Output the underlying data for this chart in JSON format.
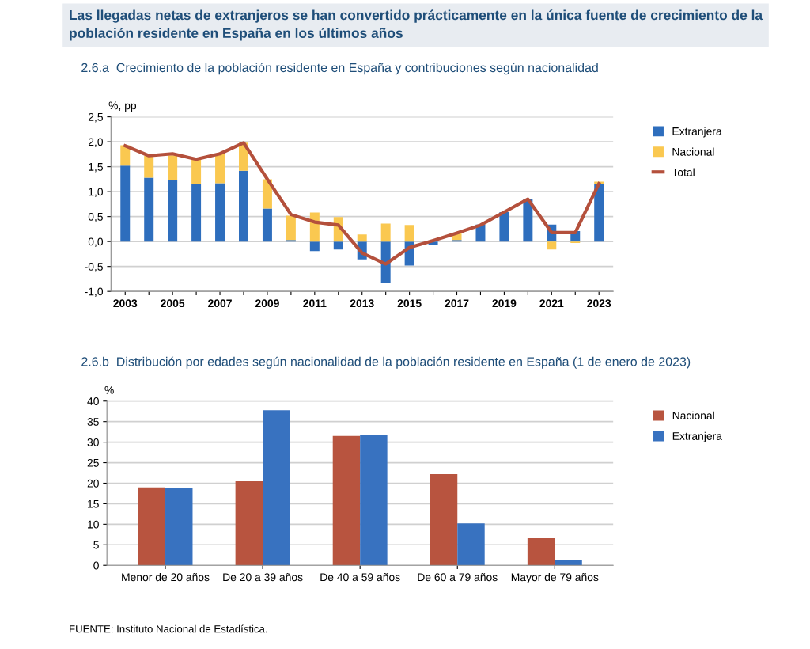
{
  "chart_data": [
    {
      "type": "bar",
      "title": "Las llegadas netas de extranjeros se han convertido prácticamente en la única fuente de crecimiento de la población residente en España en los últimos años",
      "subtitle": "2.6.a  Crecimiento de la población residente en España y contribuciones según nacionalidad",
      "ylabel": "%, pp",
      "categories": [
        "2003",
        null,
        "2005",
        null,
        "2007",
        null,
        "2009",
        null,
        "2011",
        null,
        "2013",
        null,
        "2015",
        null,
        "2017",
        null,
        "2019",
        null,
        "2021",
        null,
        "2023"
      ],
      "stacked": true,
      "series": [
        {
          "name": "Extranjera",
          "color": "#2e6ebd",
          "values": [
            1.52,
            1.28,
            1.24,
            1.15,
            1.17,
            1.42,
            0.66,
            0.03,
            -0.19,
            -0.16,
            -0.36,
            -0.83,
            -0.48,
            -0.07,
            0.03,
            0.34,
            0.59,
            0.85,
            0.34,
            0.21,
            1.16
          ]
        },
        {
          "name": "Nacional",
          "color": "#fac850",
          "values": [
            0.41,
            0.44,
            0.49,
            0.5,
            0.58,
            0.56,
            0.59,
            0.49,
            0.58,
            0.49,
            0.14,
            0.36,
            0.33,
            null,
            0.14,
            0.0,
            0.0,
            0.0,
            -0.16,
            -0.03,
            0.04
          ]
        },
        {
          "name": "Total",
          "type": "line",
          "color": "#b4503c",
          "values": [
            1.92,
            1.72,
            1.76,
            1.65,
            1.76,
            1.98,
            1.25,
            0.54,
            0.39,
            0.33,
            -0.23,
            -0.45,
            -0.12,
            0.02,
            0.17,
            0.33,
            0.59,
            0.85,
            0.18,
            0.18,
            1.16
          ]
        }
      ],
      "ylim": [
        -1.0,
        2.5
      ],
      "yticks": [
        {
          "value": -1.0,
          "label": "-1,0"
        },
        {
          "value": -0.5,
          "label": "-0,5"
        },
        {
          "value": 0.0,
          "label": "0,0"
        },
        {
          "value": 0.5,
          "label": "0,5"
        },
        {
          "value": 1.0,
          "label": "1,0"
        },
        {
          "value": 1.5,
          "label": "1,5"
        },
        {
          "value": 2.0,
          "label": "2,0"
        },
        {
          "value": 2.5,
          "label": "2,5"
        }
      ],
      "grid": "y",
      "legend": "right"
    },
    {
      "type": "bar",
      "title": "2.6.b  Distribución por edades según nacionalidad de la población residente en España (1 de enero de 2023)",
      "ylabel": "%",
      "categories": [
        "Menor de 20 años",
        "De 20 a 39 años",
        "De 40 a 59 años",
        "De 60 a 79 años",
        "Mayor de 79 años"
      ],
      "series": [
        {
          "name": "Nacional",
          "color": "#b8543f",
          "values": [
            19.0,
            20.5,
            31.5,
            22.2,
            6.6
          ]
        },
        {
          "name": "Extranjera",
          "color": "#3872c0",
          "values": [
            18.8,
            37.8,
            31.8,
            10.2,
            1.2
          ]
        }
      ],
      "ylim": [
        0,
        40
      ],
      "yticks": [
        0,
        5,
        10,
        15,
        20,
        25,
        30,
        35,
        40
      ],
      "grid": "y",
      "legend": "right",
      "annotations": [
        "FUENTE: Instituto Nacional de Estadística."
      ]
    }
  ]
}
